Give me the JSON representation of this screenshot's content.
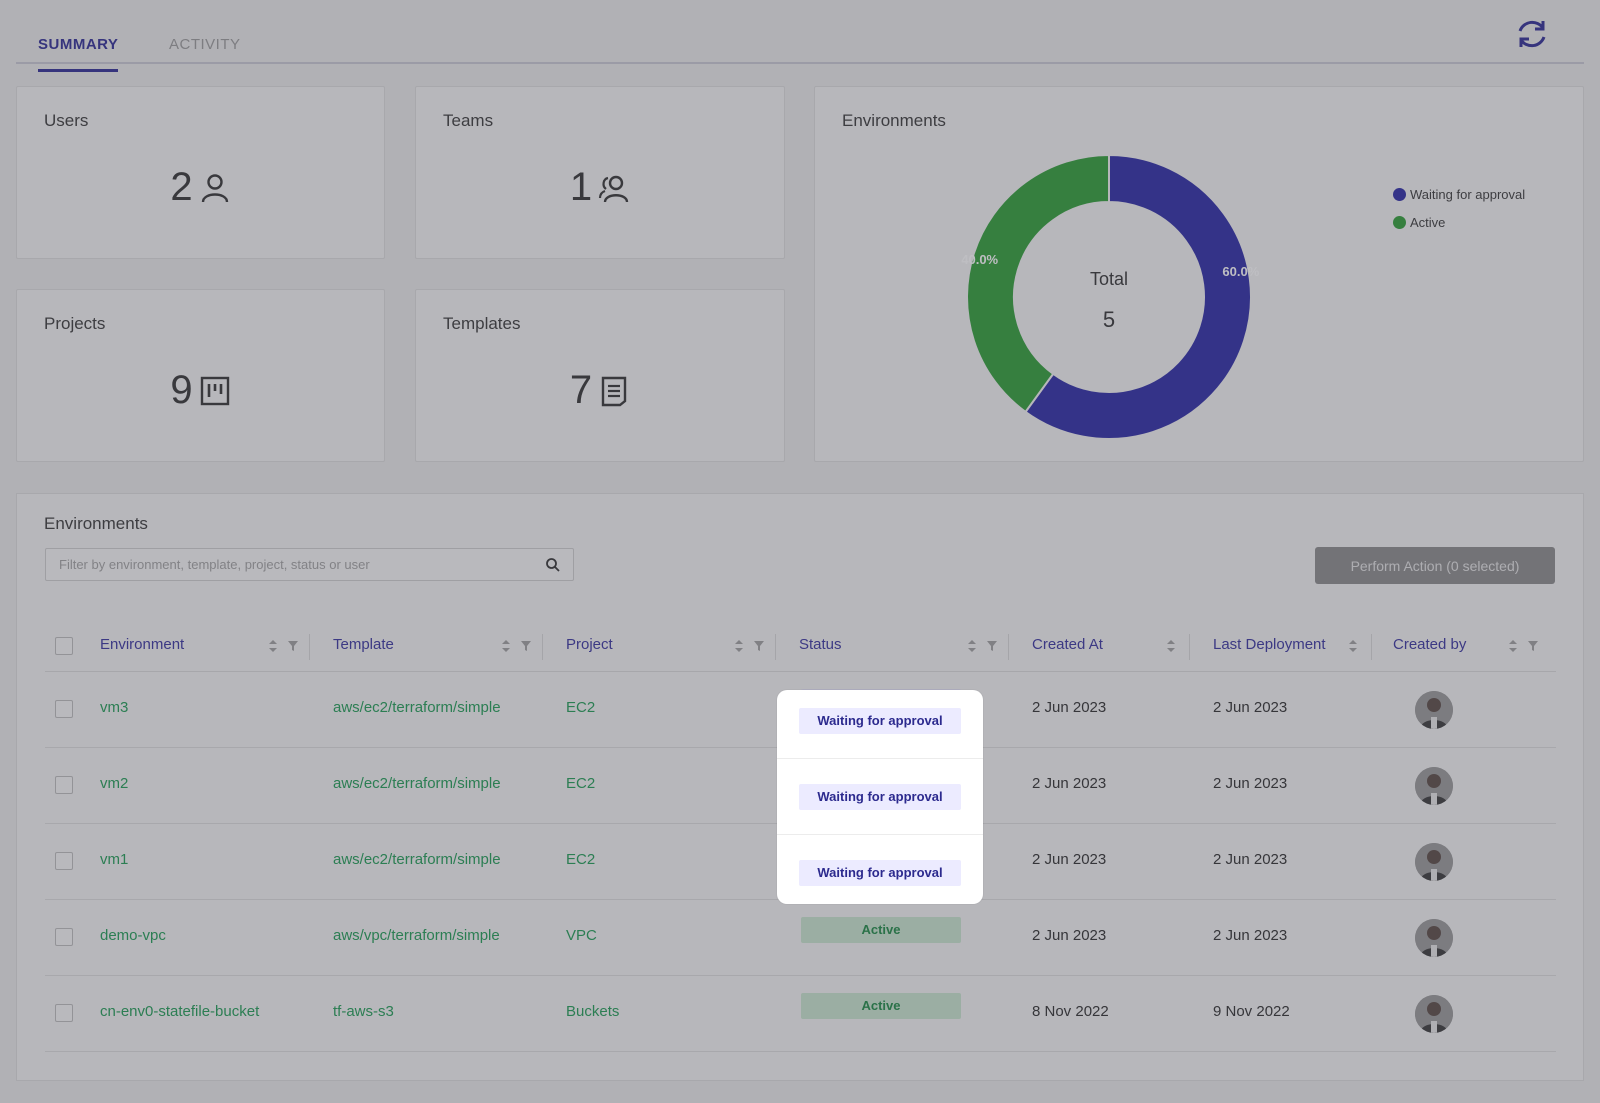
{
  "tabs": [
    {
      "label": "SUMMARY",
      "active": true
    },
    {
      "label": "ACTIVITY",
      "active": false
    }
  ],
  "refresh_icon": "refresh-icon",
  "cards": {
    "users": {
      "title": "Users",
      "value": "2",
      "icon": "user-icon"
    },
    "teams": {
      "title": "Teams",
      "value": "1",
      "icon": "team-icon"
    },
    "projects": {
      "title": "Projects",
      "value": "9",
      "icon": "board-icon"
    },
    "templates": {
      "title": "Templates",
      "value": "7",
      "icon": "document-icon"
    }
  },
  "environments_chart": {
    "title": "Environments",
    "center_label": "Total",
    "center_value": "5"
  },
  "chart_data": {
    "type": "pie",
    "title": "Environments",
    "categories": [
      "Waiting for approval",
      "Active"
    ],
    "values": [
      3,
      2
    ],
    "percent_labels": [
      "60.0%",
      "40.0%"
    ],
    "colors": [
      "#2b2aa6",
      "#2e9e37"
    ],
    "legend_position": "top-right",
    "donut": true
  },
  "table_panel": {
    "title": "Environments",
    "search_placeholder": "Filter by environment, template, project, status or user",
    "perform_action_label": "Perform Action (0 selected)"
  },
  "columns": [
    "Environment",
    "Template",
    "Project",
    "Status",
    "Created At",
    "Last Deployment",
    "Created by"
  ],
  "rows": [
    {
      "environment": "vm3",
      "template": "aws/ec2/terraform/simple",
      "project": "EC2",
      "status": "Waiting for approval",
      "created_at": "2 Jun 2023",
      "last_deployment": "2 Jun 2023"
    },
    {
      "environment": "vm2",
      "template": "aws/ec2/terraform/simple",
      "project": "EC2",
      "status": "Waiting for approval",
      "created_at": "2 Jun 2023",
      "last_deployment": "2 Jun 2023"
    },
    {
      "environment": "vm1",
      "template": "aws/ec2/terraform/simple",
      "project": "EC2",
      "status": "Waiting for approval",
      "created_at": "2 Jun 2023",
      "last_deployment": "2 Jun 2023"
    },
    {
      "environment": "demo-vpc",
      "template": "aws/vpc/terraform/simple",
      "project": "VPC",
      "status": "Active",
      "created_at": "2 Jun 2023",
      "last_deployment": "2 Jun 2023"
    },
    {
      "environment": "cn-env0-statefile-bucket",
      "template": "tf-aws-s3",
      "project": "Buckets",
      "status": "Active",
      "created_at": "8 Nov 2022",
      "last_deployment": "9 Nov 2022"
    }
  ],
  "colors": {
    "accent": "#2f2c96",
    "link": "#1f9d55",
    "waiting": "#2b2aa6",
    "active": "#2e9e37"
  }
}
